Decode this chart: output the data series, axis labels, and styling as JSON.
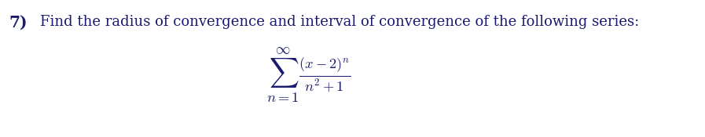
{
  "problem_number": "7)",
  "text": "Find the radius of convergence and interval of convergence of the following series:",
  "series_mathtext": "$\\sum_{n=1}^{\\infty} \\frac{(x-2)^{n}}{n^{2}+1}$",
  "text_color": "#1a1a6e",
  "bg_color": "#ffffff",
  "text_fontsize": 13.0,
  "formula_fontsize": 19,
  "number_fontsize": 14.5
}
